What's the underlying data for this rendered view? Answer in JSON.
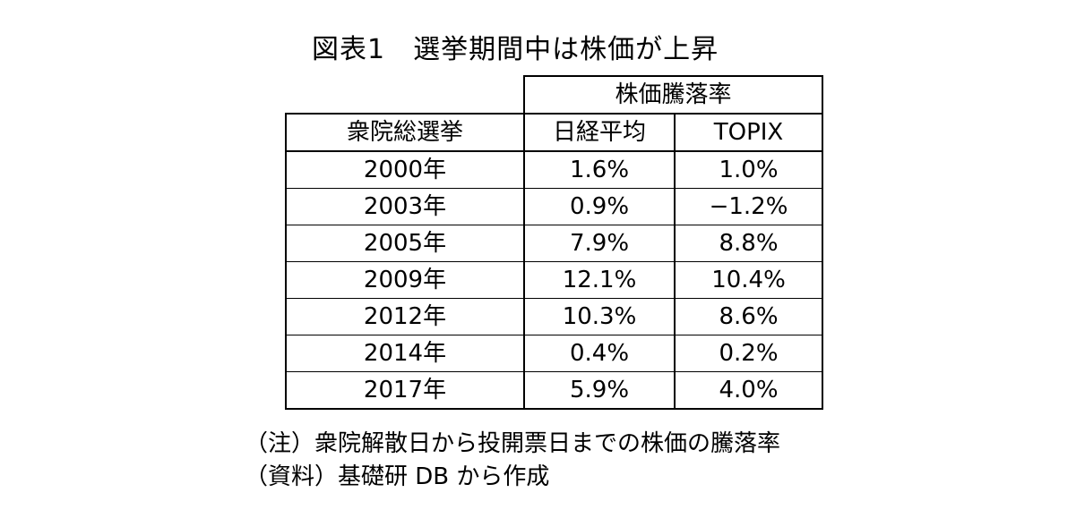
{
  "title": "図表1　選挙期間中は株価が上昇",
  "table": {
    "group_header": "株価騰落率",
    "col_headers": [
      "衆院総選挙",
      "日経平均",
      "TOPIX"
    ],
    "rows": [
      {
        "year": "2000年",
        "nikkei": "1.6%",
        "topix": "1.0%"
      },
      {
        "year": "2003年",
        "nikkei": "0.9%",
        "topix": "−1.2%"
      },
      {
        "year": "2005年",
        "nikkei": "7.9%",
        "topix": "8.8%"
      },
      {
        "year": "2009年",
        "nikkei": "12.1%",
        "topix": "10.4%"
      },
      {
        "year": "2012年",
        "nikkei": "10.3%",
        "topix": "8.6%"
      },
      {
        "year": "2014年",
        "nikkei": "0.4%",
        "topix": "0.2%"
      },
      {
        "year": "2017年",
        "nikkei": "5.9%",
        "topix": "4.0%"
      }
    ]
  },
  "notes": {
    "note": "（注）衆院解散日から投開票日までの株価の騰落率",
    "source": "（資料）基礎研 DB から作成"
  }
}
